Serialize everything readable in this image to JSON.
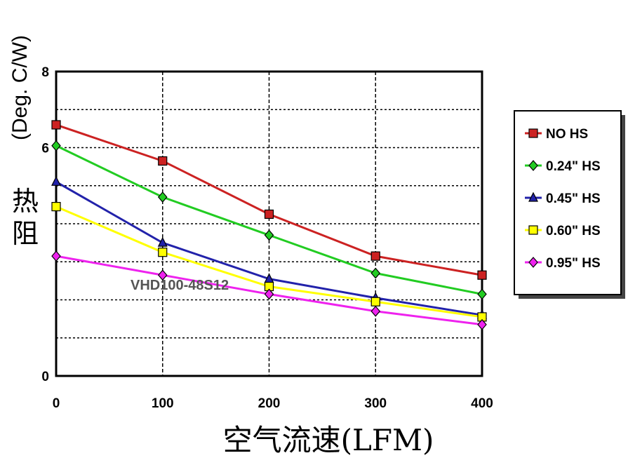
{
  "chart_data": {
    "type": "line",
    "x": [
      0,
      100,
      200,
      300,
      400
    ],
    "xlim": [
      0,
      400
    ],
    "ylim": [
      0,
      8
    ],
    "x_ticks": [
      "0",
      "100",
      "200",
      "300",
      "400"
    ],
    "y_ticks": [
      "0",
      "6",
      "8"
    ],
    "xlabel": "空气流速(LFM)",
    "ylabel_cn": "热阻",
    "ylabel_unit": "(Deg. C/W)",
    "annotation": "VHD100-48S12",
    "grid": true,
    "legend_position": "right",
    "series": [
      {
        "name": "NO HS",
        "color": "#cc2222",
        "marker": "square",
        "values": [
          6.6,
          5.65,
          4.25,
          3.15,
          2.65
        ]
      },
      {
        "name": "0.24\" HS",
        "color": "#22cc22",
        "marker": "diamond",
        "values": [
          6.05,
          4.7,
          3.7,
          2.7,
          2.15
        ]
      },
      {
        "name": "0.45\" HS",
        "color": "#2222aa",
        "marker": "triangle",
        "values": [
          5.1,
          3.5,
          2.55,
          2.05,
          1.6
        ]
      },
      {
        "name": "0.60\" HS",
        "color": "#ffff00",
        "marker": "square",
        "values": [
          4.45,
          3.25,
          2.35,
          1.95,
          1.55
        ]
      },
      {
        "name": "0.95\" HS",
        "color": "#ee22ee",
        "marker": "diamond",
        "values": [
          3.15,
          2.65,
          2.15,
          1.7,
          1.35
        ]
      }
    ]
  }
}
